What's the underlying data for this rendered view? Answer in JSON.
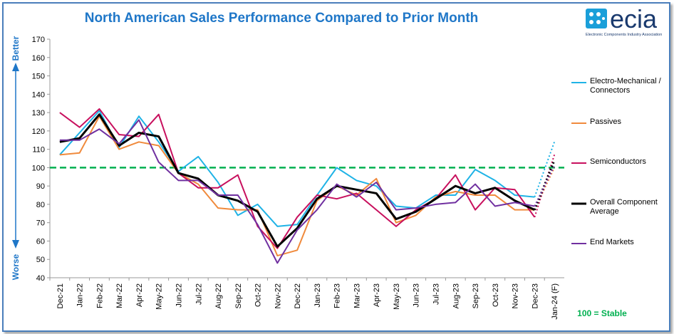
{
  "chart_data": {
    "type": "line",
    "title": "North American Sales Performance Compared to Prior Month",
    "logo_text": "ecia",
    "logo_subtitle": "Electronic Components Industry Association",
    "y_top_label": "Better",
    "y_bottom_label": "Worse",
    "reference_line": {
      "value": 100,
      "color": "#00b050",
      "label": "100 = Stable"
    },
    "categories": [
      "Dec-21",
      "Jan-22",
      "Feb-22",
      "Mar-22",
      "Apr-22",
      "May-22",
      "Jun-22",
      "Jul-22",
      "Aug-22",
      "Sep-22",
      "Oct-22",
      "Nov-22",
      "Dec-22",
      "Jan-23",
      "Feb-23",
      "Mar-23",
      "Apr-23",
      "May-23",
      "Jun-23",
      "Jul-23",
      "Aug-23",
      "Sep-23",
      "Oct-23",
      "Nov-23",
      "Dec-23",
      "Jan-24 (F)"
    ],
    "series": [
      {
        "name": "Electro-Mechanical / Connectors",
        "color": "#1fb3e6",
        "values": [
          107,
          119,
          131,
          111,
          128,
          114,
          98,
          106,
          92,
          74,
          80,
          68,
          69,
          85,
          100,
          93,
          90,
          79,
          78,
          85,
          85,
          99,
          93,
          85,
          84,
          114
        ]
      },
      {
        "name": "Passives",
        "color": "#f08a3c",
        "values": [
          107,
          108,
          128,
          110,
          114,
          112,
          97,
          91,
          78,
          77,
          77,
          52,
          55,
          82,
          90,
          85,
          94,
          70,
          74,
          84,
          87,
          85,
          85,
          77,
          77,
          100
        ]
      },
      {
        "name": "Semiconductors",
        "color": "#c8105e",
        "values": [
          130,
          122,
          132,
          118,
          117,
          129,
          97,
          89,
          89,
          96,
          68,
          56,
          73,
          85,
          83,
          86,
          77,
          68,
          77,
          83,
          96,
          77,
          89,
          88,
          73,
          107
        ]
      },
      {
        "name": "Overall Component Average",
        "color": "#000000",
        "values": [
          114,
          116,
          129,
          112,
          119,
          117,
          97,
          94,
          85,
          82,
          76,
          57,
          67,
          83,
          90,
          88,
          86,
          72,
          76,
          83,
          90,
          86,
          89,
          82,
          77,
          104
        ]
      },
      {
        "name": "End Markets",
        "color": "#7030a0",
        "values": [
          115,
          115,
          121,
          113,
          126,
          103,
          93,
          93,
          85,
          85,
          69,
          48,
          66,
          77,
          91,
          84,
          92,
          77,
          78,
          80,
          81,
          91,
          79,
          81,
          79,
          101
        ]
      }
    ],
    "ylim": [
      40,
      170
    ],
    "yticks": [
      40,
      50,
      60,
      70,
      80,
      90,
      100,
      110,
      120,
      130,
      140,
      150,
      160,
      170
    ]
  }
}
